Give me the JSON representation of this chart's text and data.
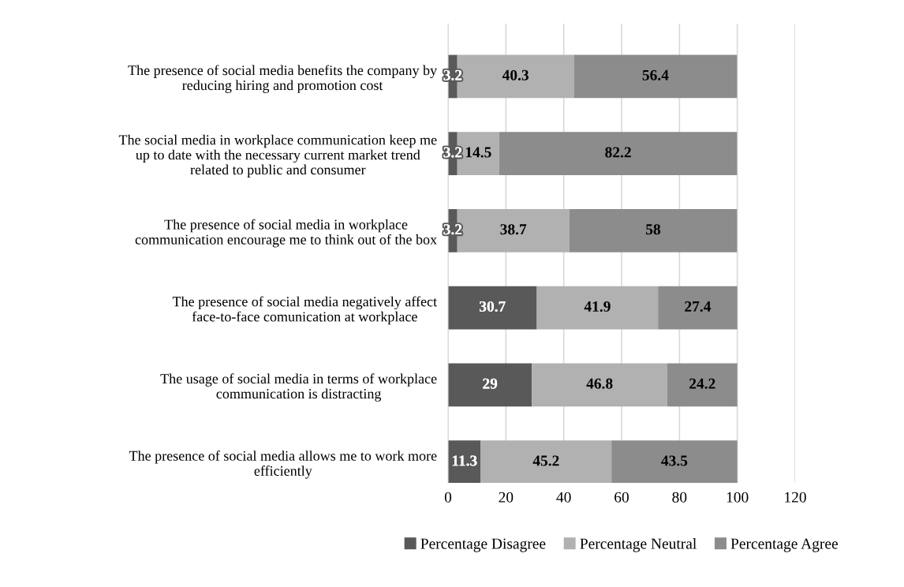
{
  "chart_data": {
    "type": "bar",
    "orientation": "horizontal",
    "stacked": true,
    "categories": [
      "The presence of social media benefits the company by reducing hiring and promotion cost",
      "The social media in workplace communication keep me up to date with the necessary current market trend related to public and consumer",
      "The presence of social media in workplace communication encourage me to think out of the box",
      "The presence of social media negatively affect face-to-face comunication at workplace",
      "The usage of social media in terms of workplace communication is distracting",
      "The presence of social media allows me to work more efficiently"
    ],
    "series": [
      {
        "name": "Percentage Disagree",
        "color": "#595959",
        "values": [
          3.2,
          3.2,
          3.2,
          30.7,
          29,
          11.3
        ]
      },
      {
        "name": "Percentage Neutral",
        "color": "#b1b1b1",
        "values": [
          40.3,
          14.5,
          38.7,
          41.9,
          46.8,
          45.2
        ]
      },
      {
        "name": "Percentage Agree",
        "color": "#8c8c8c",
        "values": [
          56.4,
          82.2,
          58,
          27.4,
          24.2,
          43.5
        ]
      }
    ],
    "xlim": [
      0,
      120
    ],
    "xticks": [
      0,
      20,
      40,
      60,
      80,
      100,
      120
    ],
    "grid": "x",
    "legend": "bottom",
    "data_labels": true
  }
}
